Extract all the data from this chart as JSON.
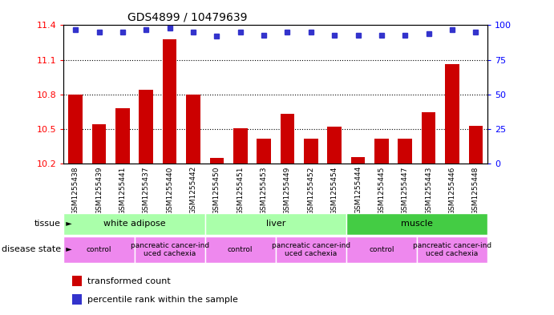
{
  "title": "GDS4899 / 10479639",
  "samples": [
    "GSM1255438",
    "GSM1255439",
    "GSM1255441",
    "GSM1255437",
    "GSM1255440",
    "GSM1255442",
    "GSM1255450",
    "GSM1255451",
    "GSM1255453",
    "GSM1255449",
    "GSM1255452",
    "GSM1255454",
    "GSM1255444",
    "GSM1255445",
    "GSM1255447",
    "GSM1255443",
    "GSM1255446",
    "GSM1255448"
  ],
  "transformed_count": [
    10.8,
    10.54,
    10.68,
    10.84,
    11.28,
    10.8,
    10.25,
    10.51,
    10.42,
    10.63,
    10.42,
    10.52,
    10.26,
    10.42,
    10.42,
    10.65,
    11.06,
    10.53
  ],
  "percentile_rank": [
    97,
    95,
    95,
    97,
    98,
    95,
    92,
    95,
    93,
    95,
    95,
    93,
    93,
    93,
    93,
    94,
    97,
    95
  ],
  "ylim_left": [
    10.2,
    11.4
  ],
  "ylim_right": [
    0,
    100
  ],
  "yticks_left": [
    10.2,
    10.5,
    10.8,
    11.1,
    11.4
  ],
  "yticks_right": [
    0,
    25,
    50,
    75,
    100
  ],
  "bar_color": "#cc0000",
  "dot_color": "#3333cc",
  "tissue_groups": [
    {
      "label": "white adipose",
      "start": 0,
      "end": 6,
      "color": "#aaffaa"
    },
    {
      "label": "liver",
      "start": 6,
      "end": 12,
      "color": "#aaffaa"
    },
    {
      "label": "muscle",
      "start": 12,
      "end": 18,
      "color": "#44cc44"
    }
  ],
  "disease_groups": [
    {
      "label": "control",
      "start": 0,
      "end": 3
    },
    {
      "label": "pancreatic cancer-ind\nuced cachexia",
      "start": 3,
      "end": 6
    },
    {
      "label": "control",
      "start": 6,
      "end": 9
    },
    {
      "label": "pancreatic cancer-ind\nuced cachexia",
      "start": 9,
      "end": 12
    },
    {
      "label": "control",
      "start": 12,
      "end": 15
    },
    {
      "label": "pancreatic cancer-ind\nuced cachexia",
      "start": 15,
      "end": 18
    }
  ],
  "disease_row_color": "#ee88ee",
  "legend_bar_label": "transformed count",
  "legend_dot_label": "percentile rank within the sample",
  "tissue_label": "tissue",
  "disease_state_label": "disease state"
}
